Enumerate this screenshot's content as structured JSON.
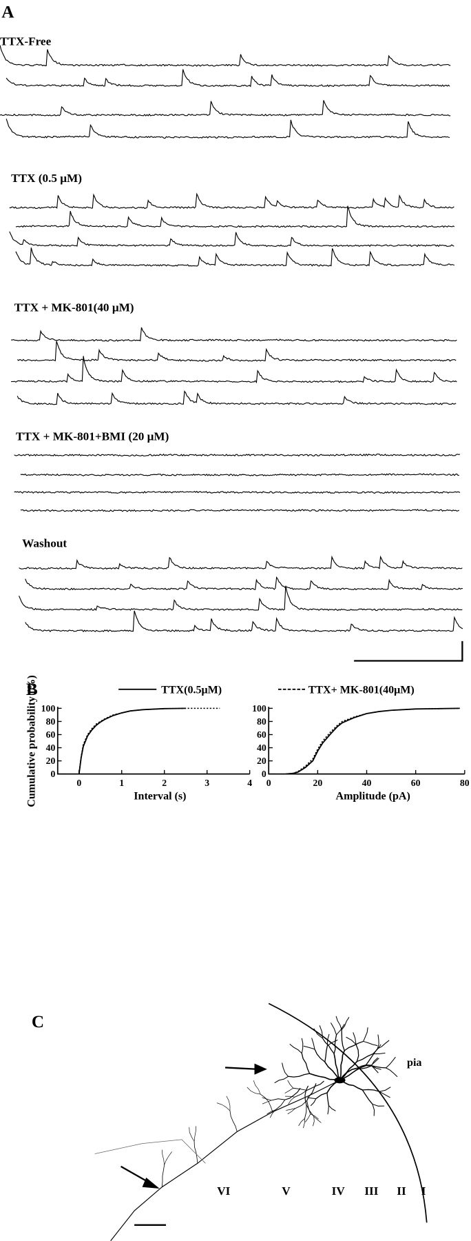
{
  "panel_labels": [
    "A",
    "B",
    "C"
  ],
  "traces": {
    "labels": [
      "TTX-Free",
      "TTX (0.5 μM)",
      "TTX + MK-801(40 μM)",
      "TTX + MK-801+BMI (20 μM)",
      "Washout"
    ]
  },
  "chart_data": [
    {
      "type": "line",
      "xlabel": "Interval (s)",
      "ylabel": "Cumulative probability (%)",
      "x": [
        0,
        0.05,
        0.1,
        0.2,
        0.3,
        0.4,
        0.5,
        0.6,
        0.8,
        1.0,
        1.2,
        1.5,
        2.0,
        2.5,
        3.3
      ],
      "series": [
        {
          "name": "TTX(0.5μM)",
          "color": "#000",
          "style": "solid",
          "values": [
            0,
            25,
            42,
            58,
            67,
            74,
            79,
            83,
            89,
            93,
            96,
            98,
            99.5,
            100,
            null
          ]
        },
        {
          "name": "TTX+ MK-801(40μM)",
          "color": "#000",
          "style": "dashed",
          "values": [
            0,
            27,
            45,
            60,
            69,
            76,
            80,
            84,
            90,
            93,
            96,
            98,
            99.5,
            100,
            100
          ]
        }
      ],
      "xlim": [
        -0.5,
        4
      ],
      "xticks": [
        0,
        1,
        2,
        3,
        4
      ],
      "ylim": [
        0,
        100
      ],
      "yticks": [
        0,
        20,
        40,
        60,
        80,
        100
      ]
    },
    {
      "type": "line",
      "xlabel": "Amplitude (pA)",
      "x": [
        7,
        10,
        12,
        15,
        18,
        20,
        22,
        25,
        28,
        30,
        35,
        40,
        45,
        50,
        60,
        70,
        78
      ],
      "series": [
        {
          "color": "#000",
          "style": "solid",
          "values": [
            0,
            1,
            3,
            10,
            20,
            35,
            47,
            60,
            72,
            78,
            86,
            92,
            95,
            97,
            99,
            99.5,
            100
          ]
        },
        {
          "color": "#000",
          "style": "dashed",
          "values": [
            0,
            1,
            4,
            12,
            23,
            38,
            50,
            63,
            74,
            80,
            87,
            92,
            95,
            97,
            99,
            99.5,
            100
          ]
        }
      ],
      "xlim": [
        0,
        80
      ],
      "xticks": [
        0,
        20,
        40,
        60,
        80
      ],
      "ylim": [
        0,
        100
      ],
      "yticks": [
        0,
        20,
        40,
        60,
        80,
        100
      ]
    }
  ],
  "neuron": {
    "pia": "pia",
    "layers": [
      "VI",
      "V",
      "IV",
      "III",
      "II",
      "I"
    ]
  }
}
